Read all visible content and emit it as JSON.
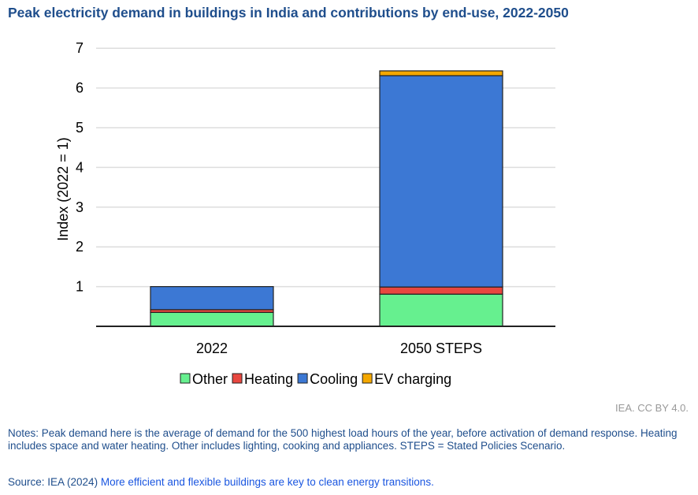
{
  "title": "Peak electricity demand in buildings in India and contributions by end-use, 2022-2050",
  "credit": "IEA. CC BY 4.0.",
  "notes": "Notes: Peak demand here is the average of demand for the 500 highest load hours of the year, before activation of demand response. Heating includes space and water heating. Other includes lighting, cooking and appliances.  STEPS = Stated Policies Scenario.",
  "source_prefix": "Source: IEA (2024) ",
  "source_link": "More efficient and flexible buildings are key to clean energy transitions.",
  "chart_data": {
    "type": "bar",
    "stacked": true,
    "categories": [
      "2022",
      "2050 STEPS"
    ],
    "ylabel": "Index  (2022 = 1)",
    "ylim": [
      0,
      7
    ],
    "yticks": [
      1,
      2,
      3,
      4,
      5,
      6,
      7
    ],
    "grid": true,
    "legend_placement": "bottom",
    "series": [
      {
        "name": "Other",
        "color": "#66f08f",
        "values": [
          0.35,
          0.81
        ]
      },
      {
        "name": "Heating",
        "color": "#e8473f",
        "values": [
          0.07,
          0.18
        ]
      },
      {
        "name": "Cooling",
        "color": "#3c78d4",
        "values": [
          0.58,
          5.32
        ]
      },
      {
        "name": "EV charging",
        "color": "#f5a800",
        "values": [
          0,
          0.12
        ]
      }
    ]
  }
}
